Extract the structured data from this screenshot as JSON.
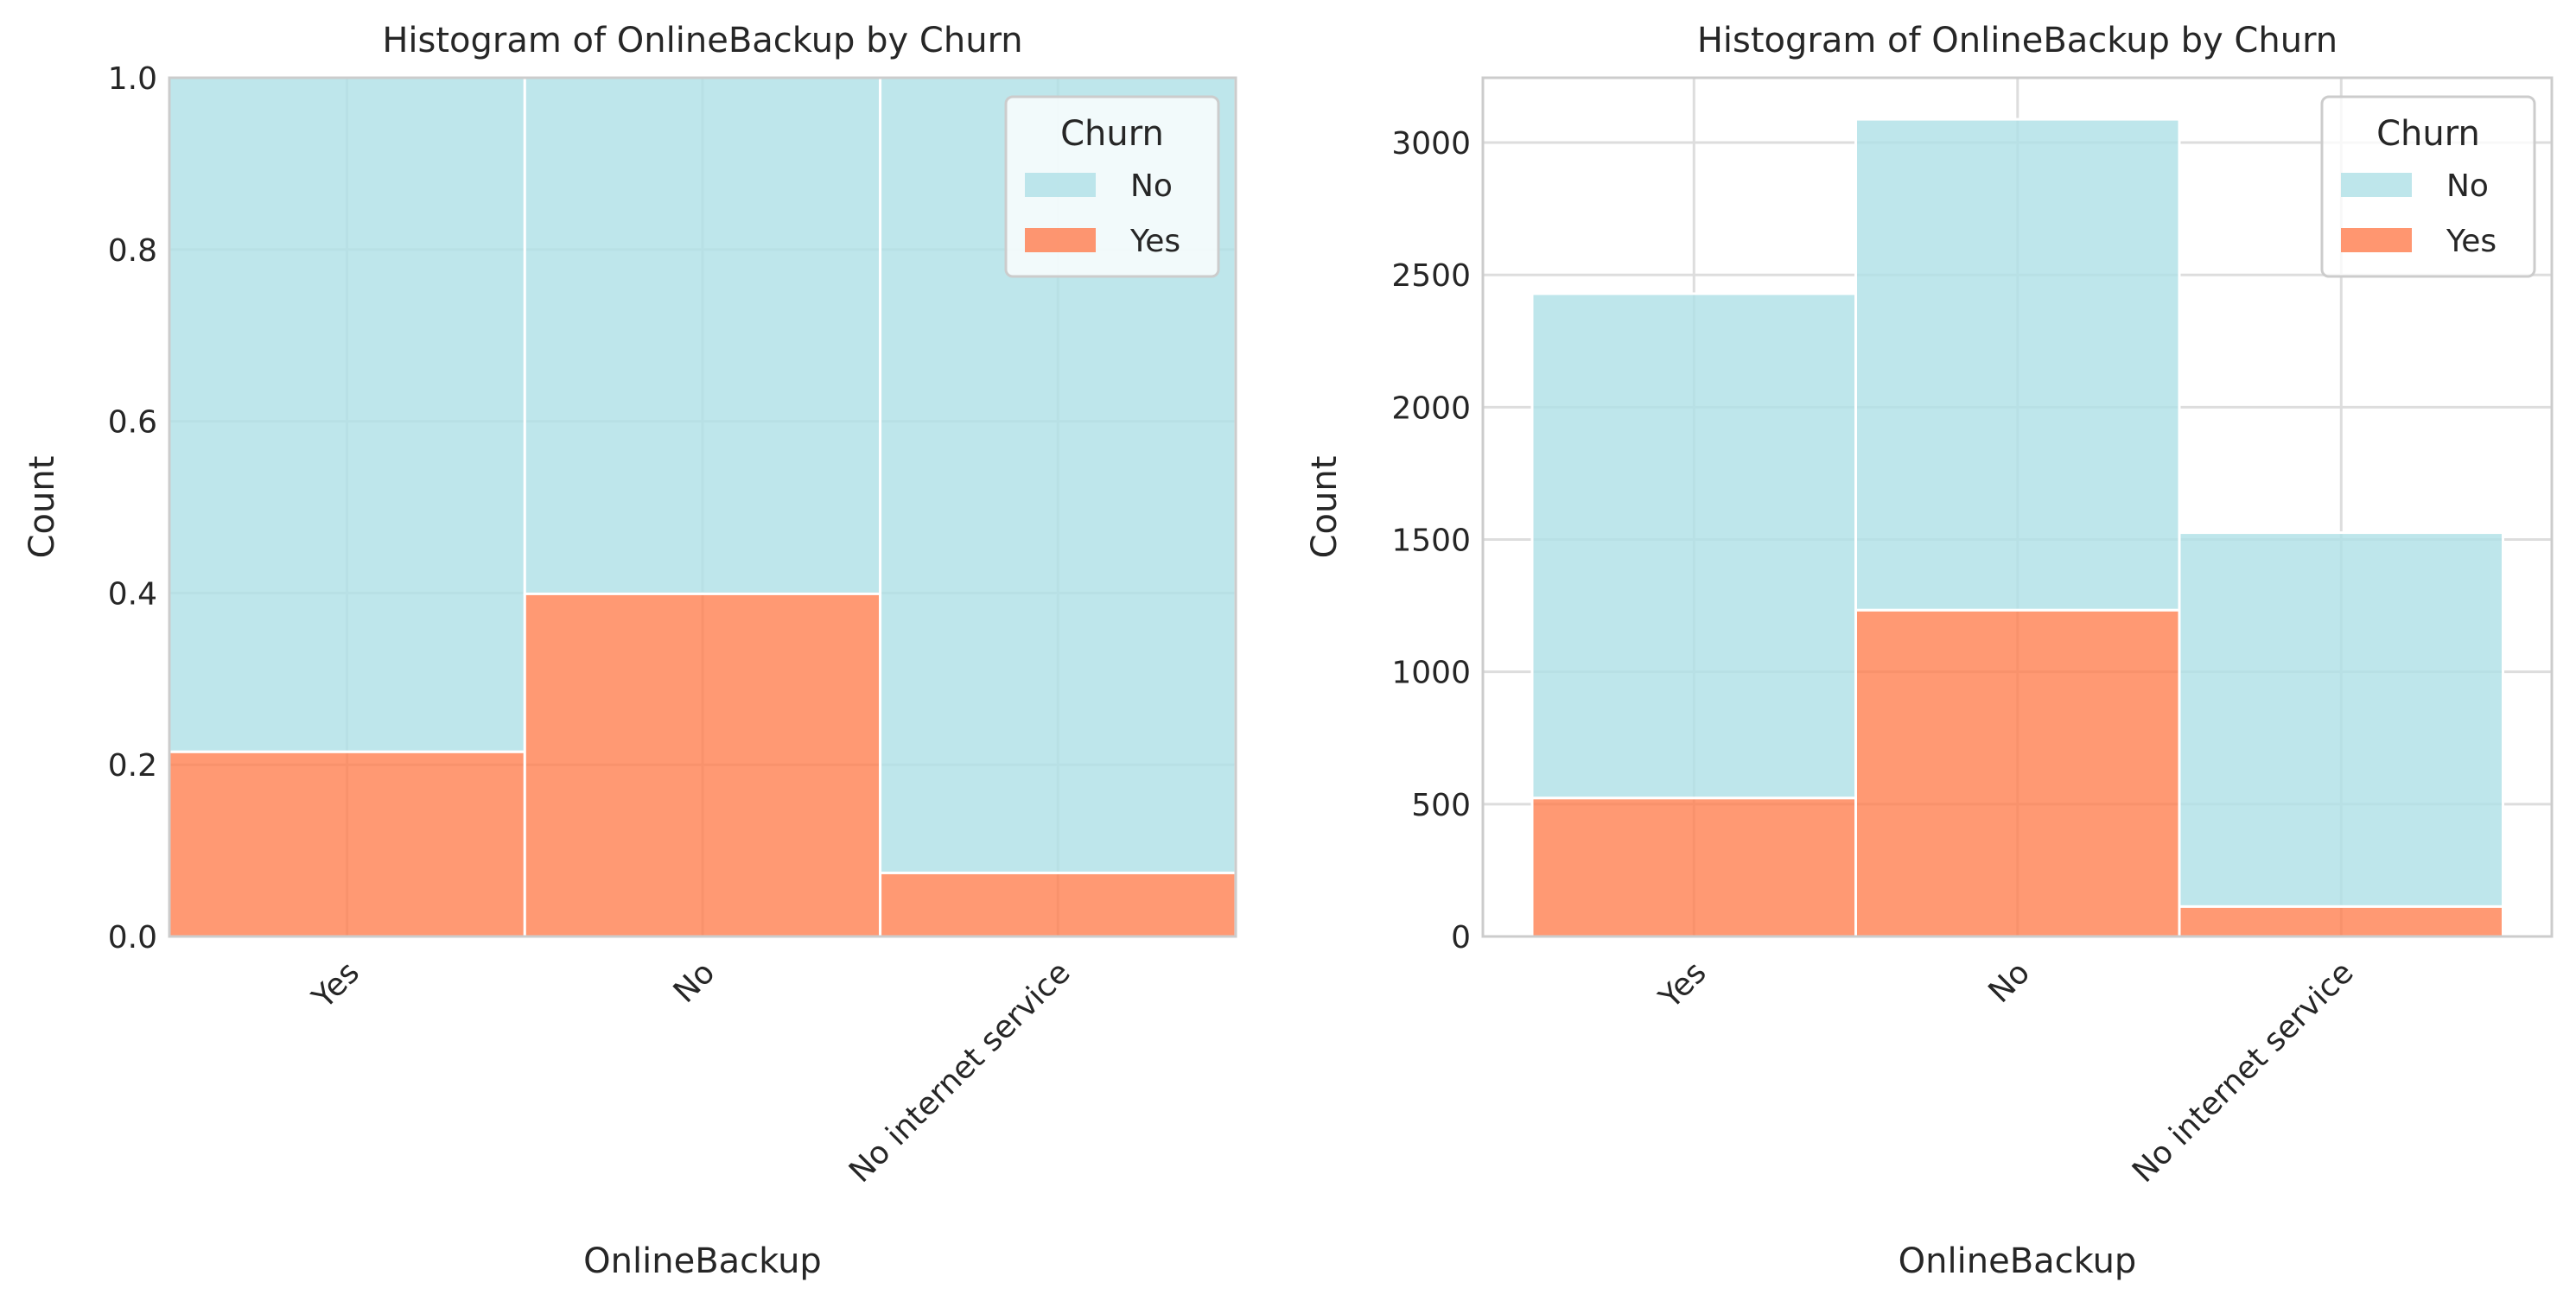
{
  "colors": {
    "No": "#b0e0e6",
    "Yes": "#ff7f50",
    "grid": "#dddddd",
    "spine": "#cccccc"
  },
  "chart_data": [
    {
      "type": "bar",
      "stacked": true,
      "normalized": true,
      "title": "Histogram of OnlineBackup by Churn",
      "xlabel": "OnlineBackup",
      "ylabel": "Count",
      "categories": [
        "Yes",
        "No",
        "No internet service"
      ],
      "ylim": [
        0,
        1.0
      ],
      "yticks": [
        "0.0",
        "0.2",
        "0.4",
        "0.6",
        "0.8",
        "1.0"
      ],
      "series": [
        {
          "name": "Yes",
          "values": [
            0.215,
            0.399,
            0.074
          ]
        },
        {
          "name": "No",
          "values": [
            0.785,
            0.601,
            0.926
          ]
        }
      ],
      "legend": {
        "title": "Churn",
        "entries": [
          "No",
          "Yes"
        ],
        "placement": "top-right"
      },
      "grid": true
    },
    {
      "type": "bar",
      "stacked": true,
      "normalized": false,
      "title": "Histogram of OnlineBackup by Churn",
      "xlabel": "OnlineBackup",
      "ylabel": "Count",
      "categories": [
        "Yes",
        "No",
        "No internet service"
      ],
      "ylim": [
        0,
        3245
      ],
      "yticks": [
        "0",
        "500",
        "1000",
        "1500",
        "2000",
        "2500",
        "3000"
      ],
      "series": [
        {
          "name": "Yes",
          "values": [
            523,
            1233,
            113
          ]
        },
        {
          "name": "No",
          "values": [
            1906,
            1855,
            1413
          ]
        }
      ],
      "legend": {
        "title": "Churn",
        "entries": [
          "No",
          "Yes"
        ],
        "placement": "top-right"
      },
      "grid": true
    }
  ]
}
